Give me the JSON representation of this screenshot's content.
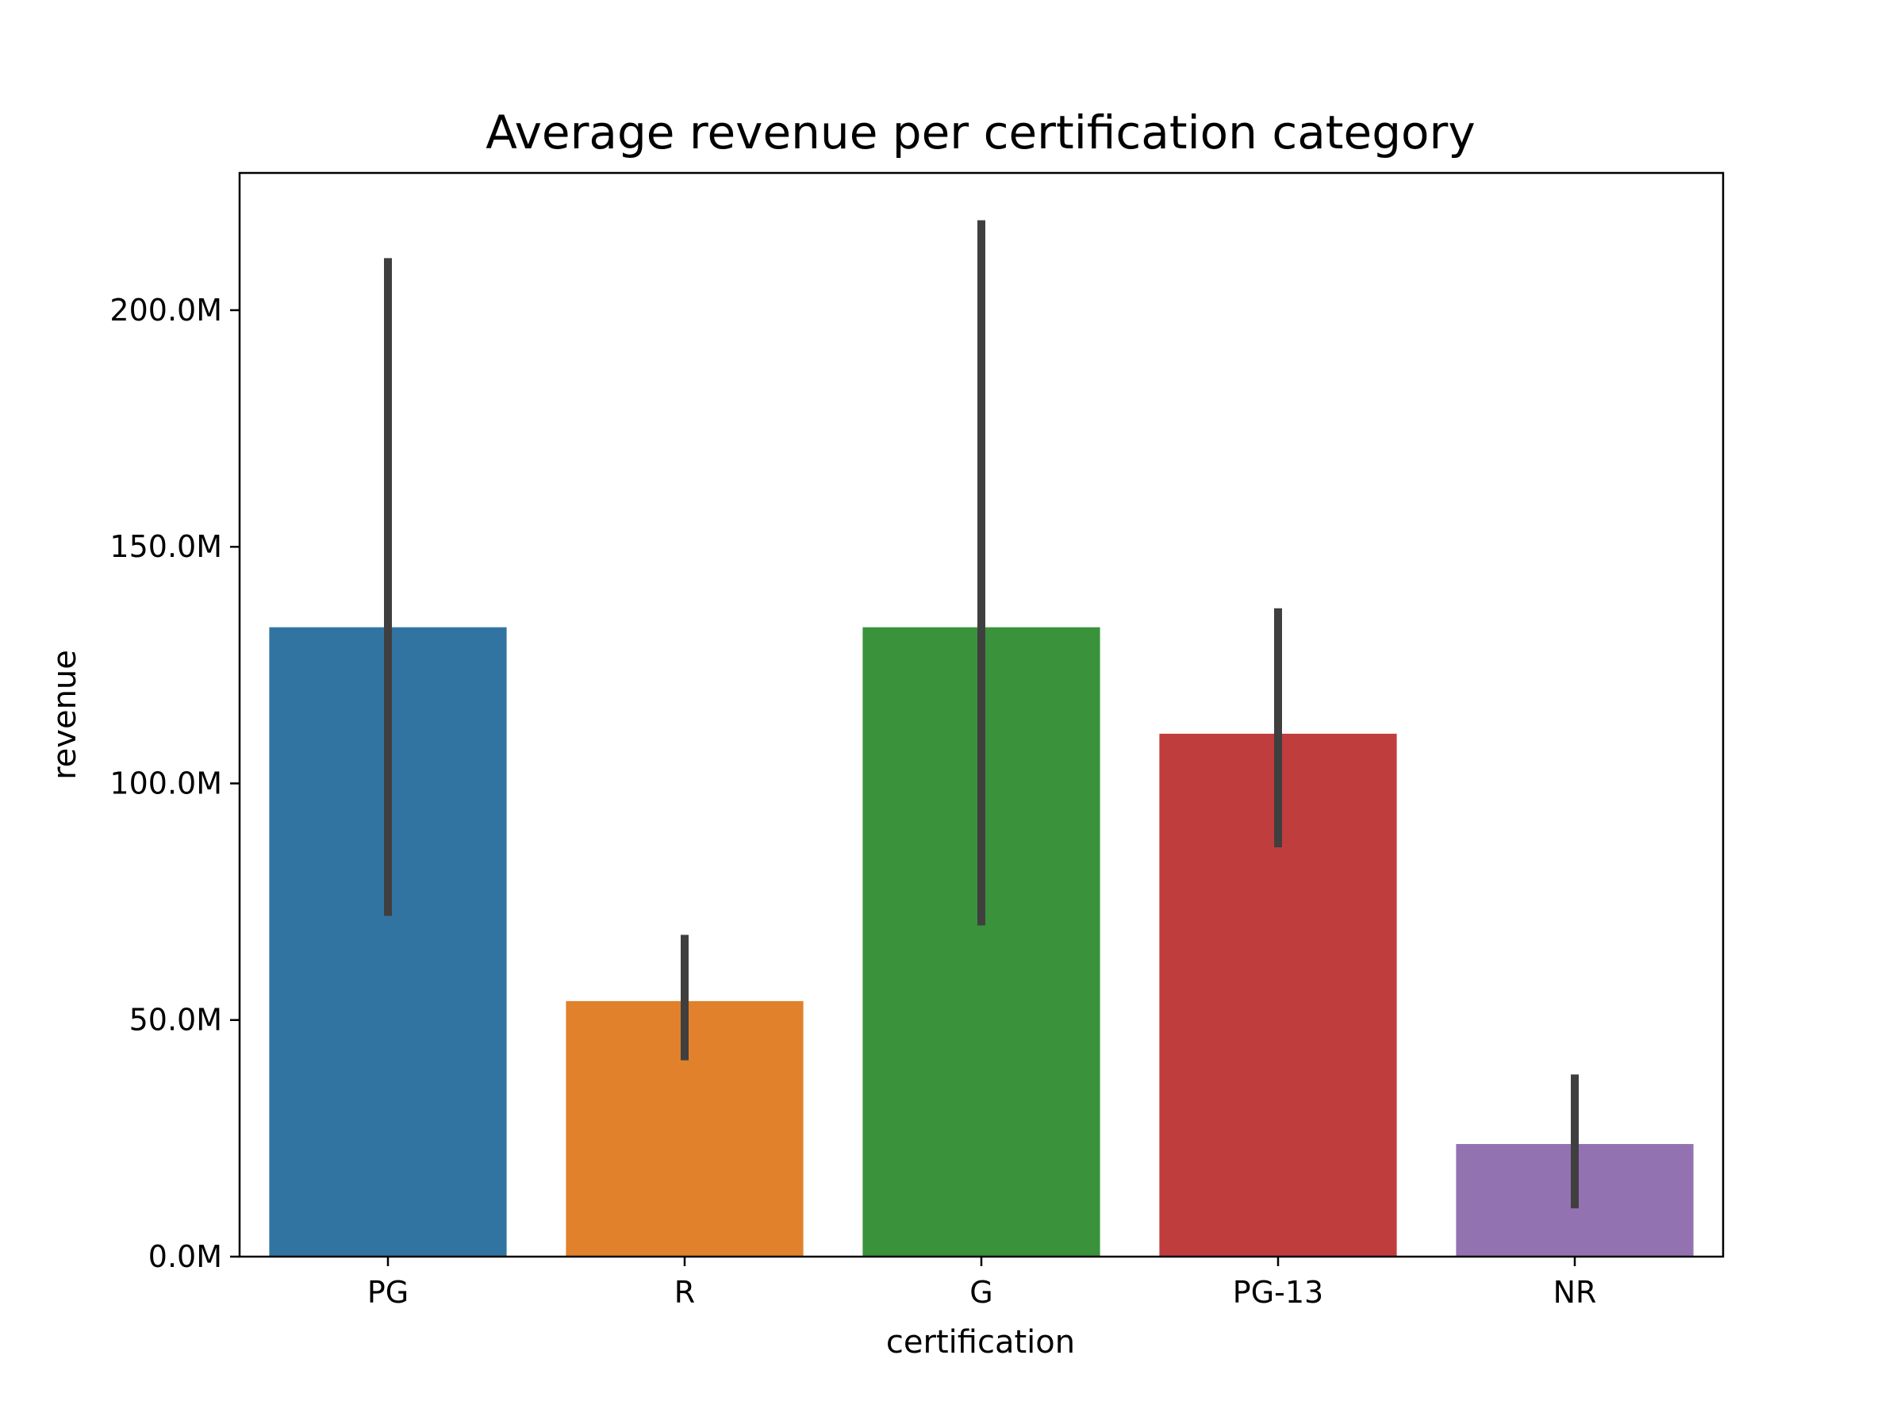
{
  "chart_data": {
    "type": "bar",
    "title": "Average revenue per certification category",
    "xlabel": "certification",
    "ylabel": "revenue",
    "categories": [
      "PG",
      "R",
      "G",
      "PG-13",
      "NR"
    ],
    "values": [
      133.0,
      54.0,
      133.0,
      110.5,
      23.8
    ],
    "error_low": [
      72.0,
      41.5,
      70.0,
      86.5,
      10.2
    ],
    "error_high": [
      211.0,
      68.0,
      219.0,
      137.0,
      38.5
    ],
    "colors": [
      "#3274a1",
      "#e1812c",
      "#3a923a",
      "#c03d3e",
      "#9372b2"
    ],
    "ylim": [
      0,
      229
    ],
    "yticks": [
      0,
      50,
      100,
      150,
      200
    ],
    "ytick_labels": [
      "0.0M",
      "50.0M",
      "100.0M",
      "150.0M",
      "200.0M"
    ],
    "unit": "M",
    "grid": false,
    "legend": "none"
  }
}
